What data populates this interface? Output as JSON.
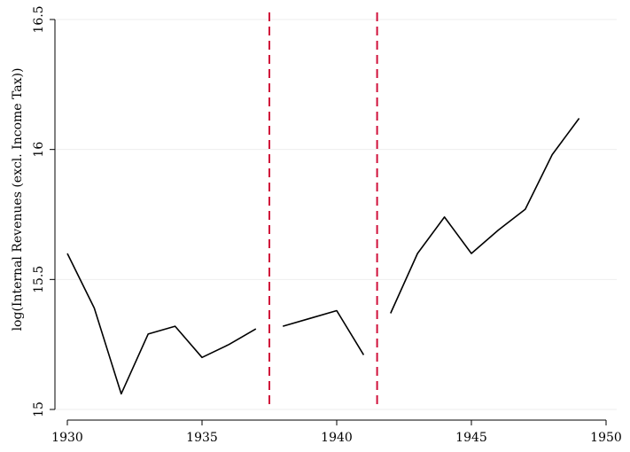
{
  "chart_data": {
    "type": "line",
    "title": "",
    "xlabel": "",
    "ylabel": "log(Internal Revenues (excl. Income Tax))",
    "xlim": [
      1930,
      1950
    ],
    "ylim": [
      15,
      16.5
    ],
    "xticks": [
      1930,
      1935,
      1940,
      1945,
      1950
    ],
    "yticks": [
      15,
      15.5,
      16,
      16.5
    ],
    "ytick_labels": [
      "15",
      "15.5",
      "16",
      "16.5"
    ],
    "grid": true,
    "grid_color": "#eeeeee",
    "line_color": "#000000",
    "reference_lines": {
      "x": [
        1937.5,
        1941.5
      ],
      "color": "#d0103a",
      "style": "dashed"
    },
    "series": [
      {
        "segments": [
          {
            "x": [
              1930,
              1931,
              1932,
              1933,
              1934,
              1935,
              1936,
              1937
            ],
            "y": [
              15.6,
              15.39,
              15.06,
              15.29,
              15.32,
              15.2,
              15.25,
              15.31
            ]
          },
          {
            "x": [
              1938,
              1939,
              1940,
              1941
            ],
            "y": [
              15.32,
              15.35,
              15.38,
              15.21
            ]
          },
          {
            "x": [
              1942,
              1943,
              1944,
              1945,
              1946,
              1947,
              1948,
              1949
            ],
            "y": [
              15.37,
              15.6,
              15.74,
              15.6,
              15.69,
              15.77,
              15.98,
              16.12
            ]
          }
        ]
      }
    ]
  }
}
